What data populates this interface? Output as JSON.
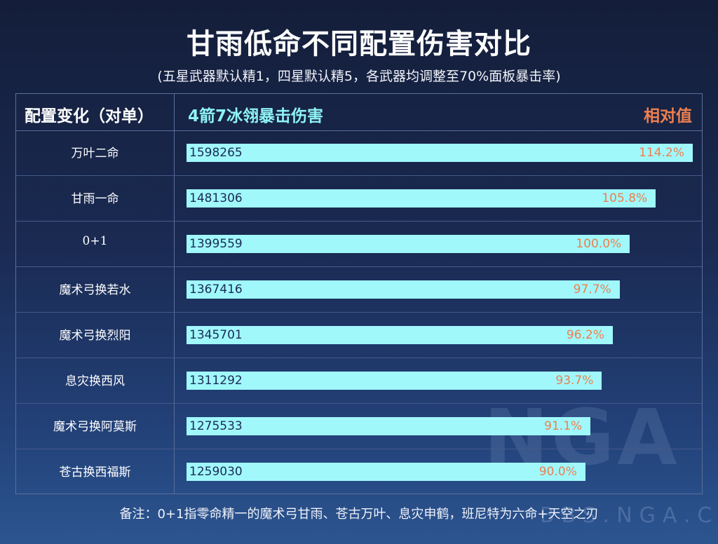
{
  "chart_data": {
    "type": "bar",
    "title": "甘雨低命不同配置伤害对比",
    "subtitle": "(五星武器默认精1，四星默认精5，各武器均调整至70%面板暴击率)",
    "col_headers": [
      "配置变化（对单）",
      "4箭7冰翎暴击伤害",
      "相对值"
    ],
    "categories": [
      "万叶二命",
      "甘雨一命",
      "0+1",
      "魔术弓换若水",
      "魔术弓换烈阳",
      "息灾换西风",
      "魔术弓换阿莫斯",
      "苍古换西福斯"
    ],
    "values": [
      1598265,
      1481306,
      1399559,
      1367416,
      1345701,
      1311292,
      1275533,
      1259030
    ],
    "relative": [
      "114.2%",
      "105.8%",
      "100.0%",
      "97.7%",
      "96.2%",
      "93.7%",
      "91.1%",
      "90.0%"
    ],
    "orientation": "horizontal",
    "bar_color": "#a0f8fb",
    "relative_color": "#ee7f4e",
    "note": "备注：0+1指零命精一的魔术弓甘雨、苍古万叶、息灾申鹤，班尼特为六命+天空之刃"
  },
  "watermark": {
    "text": "NGA",
    "sub": "BBS.NGA.CN"
  }
}
